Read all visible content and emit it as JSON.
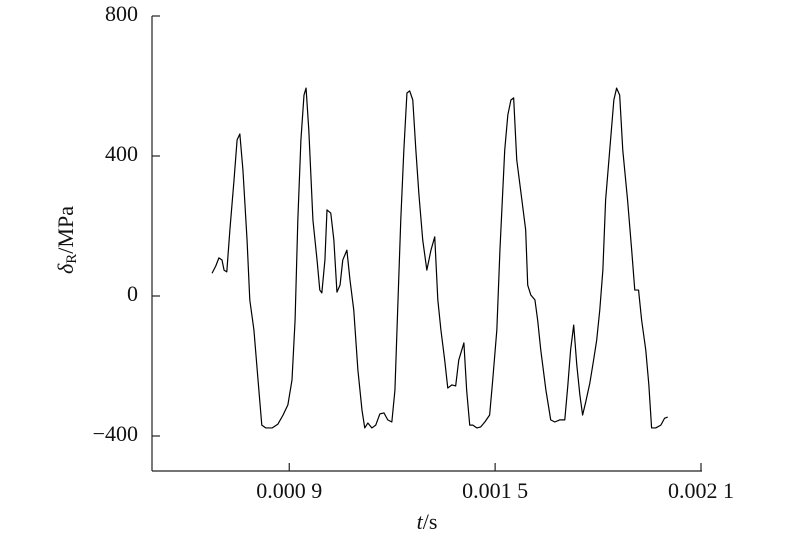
{
  "chart_data": {
    "type": "line",
    "x_label": {
      "symbol": "t",
      "unit": "/s"
    },
    "y_label": {
      "symbol": "δ",
      "subscript": "R",
      "unit": "/MPa"
    },
    "color": "#000000",
    "xlim": [
      0.0005,
      0.0021
    ],
    "xticks": [
      {
        "value": 0.0009,
        "label": "0.000 9"
      },
      {
        "value": 0.0015,
        "label": "0.001 5"
      },
      {
        "value": 0.0021,
        "label": "0.002 1"
      }
    ],
    "ylim": [
      -500,
      800
    ],
    "yticks": [
      800,
      400,
      0,
      {
        "value": -400,
        "label": "−400"
      }
    ],
    "x": [
      0.000675,
      0.000686,
      0.000695,
      0.000704,
      0.00071,
      0.000718,
      0.000727,
      0.000739,
      0.000748,
      0.000756,
      0.000765,
      0.000777,
      0.000785,
      0.000797,
      0.000809,
      0.00082,
      0.000832,
      0.00085,
      0.000867,
      0.000882,
      0.000896,
      0.000908,
      0.000917,
      0.000925,
      0.000934,
      0.000943,
      0.000949,
      0.000957,
      0.000969,
      0.000981,
      0.000989,
      0.000995,
      0.001004,
      0.00101,
      0.001021,
      0.00103,
      0.001039,
      0.001048,
      0.001056,
      0.001068,
      0.001077,
      0.001088,
      0.0011,
      0.001112,
      0.00112,
      0.001129,
      0.001141,
      0.001152,
      0.001164,
      0.001176,
      0.001187,
      0.001199,
      0.001208,
      0.001217,
      0.001225,
      0.001234,
      0.001243,
      0.001251,
      0.00126,
      0.001269,
      0.001278,
      0.001289,
      0.001301,
      0.001313,
      0.001324,
      0.001333,
      0.001342,
      0.001353,
      0.001362,
      0.001374,
      0.001385,
      0.001394,
      0.001409,
      0.001417,
      0.001426,
      0.001435,
      0.001447,
      0.001458,
      0.00147,
      0.001484,
      0.001493,
      0.001505,
      0.001514,
      0.001528,
      0.001537,
      0.001546,
      0.001554,
      0.001563,
      0.001578,
      0.001589,
      0.001595,
      0.001604,
      0.001616,
      0.001624,
      0.001633,
      0.001648,
      0.001662,
      0.001674,
      0.001688,
      0.001703,
      0.001712,
      0.00172,
      0.001729,
      0.001738,
      0.001747,
      0.001755,
      0.001764,
      0.001776,
      0.001787,
      0.001796,
      0.001805,
      0.001814,
      0.001822,
      0.001834,
      0.001846,
      0.001854,
      0.001863,
      0.001872,
      0.001886,
      0.001898,
      0.001907,
      0.001918,
      0.001927,
      0.001939,
      0.001948,
      0.001956,
      0.001968,
      0.001983,
      0.001994,
      0.002003
    ],
    "values": [
      65,
      86,
      109,
      103,
      74,
      69,
      189,
      331,
      446,
      463,
      360,
      160,
      -11,
      -97,
      -240,
      -369,
      -377,
      -377,
      -366,
      -340,
      -311,
      -240,
      -69,
      217,
      446,
      574,
      594,
      474,
      217,
      103,
      17,
      9,
      103,
      246,
      237,
      160,
      11,
      31,
      103,
      131,
      46,
      -40,
      -211,
      -326,
      -377,
      -363,
      -377,
      -369,
      -337,
      -334,
      -354,
      -360,
      -269,
      -11,
      217,
      417,
      580,
      586,
      560,
      417,
      289,
      160,
      74,
      131,
      169,
      -11,
      -97,
      -183,
      -263,
      -254,
      -257,
      -183,
      -134,
      -269,
      -369,
      -369,
      -377,
      -374,
      -360,
      -340,
      -240,
      -97,
      131,
      417,
      517,
      560,
      566,
      389,
      274,
      189,
      31,
      3,
      -11,
      -69,
      -154,
      -269,
      -354,
      -360,
      -354,
      -354,
      -254,
      -154,
      -83,
      -197,
      -283,
      -340,
      -303,
      -249,
      -183,
      -126,
      -40,
      74,
      274,
      417,
      560,
      594,
      574,
      417,
      274,
      131,
      17,
      17,
      -69,
      -154,
      -254,
      -377,
      -377,
      -369,
      -349,
      -346
    ]
  }
}
